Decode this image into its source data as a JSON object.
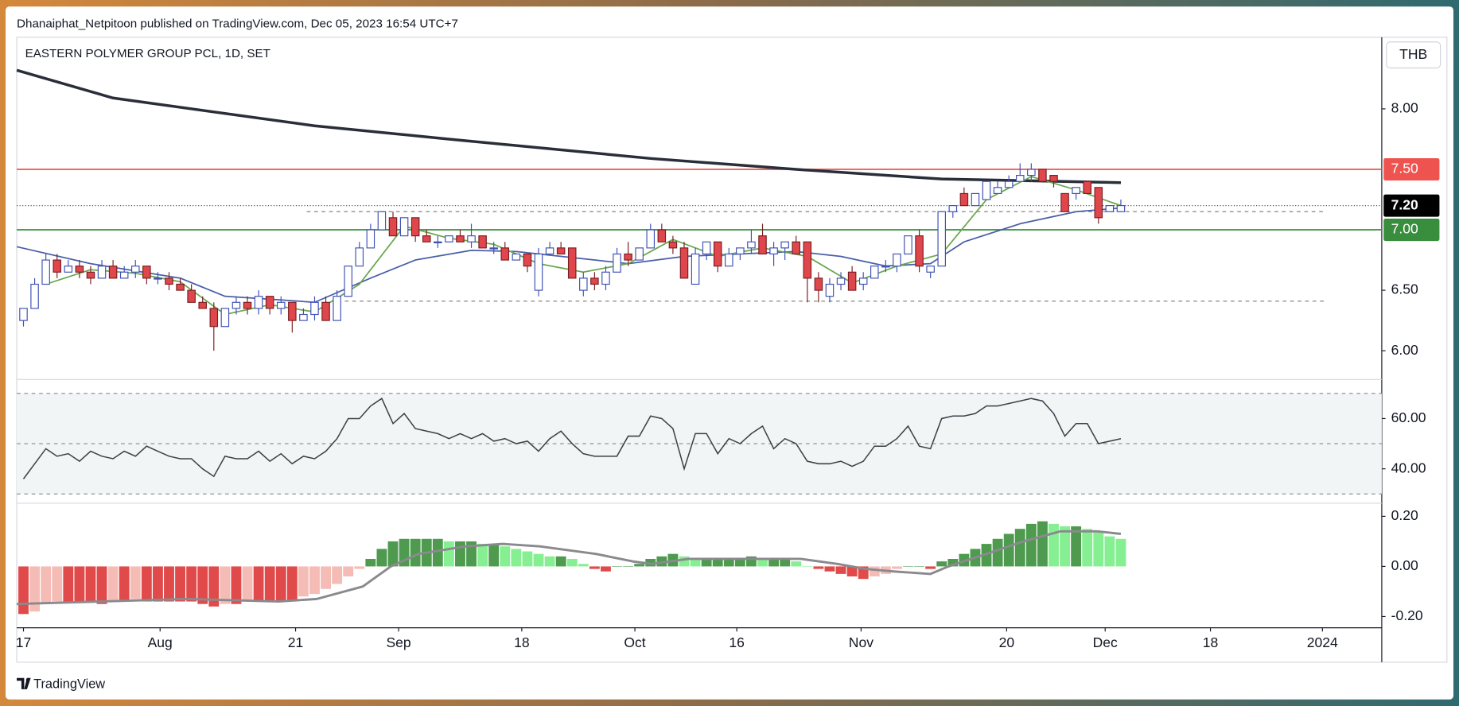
{
  "header": {
    "publisher": "Dhanaiphat_Netpitoon published on TradingView.com, Dec 05, 2023 16:54 UTC+7",
    "symbol": "EASTERN POLYMER GROUP PCL, 1D, SET",
    "currency": "THB"
  },
  "footer": {
    "brand": "TradingView"
  },
  "chart_data": [
    {
      "type": "candlestick",
      "up_color": "#ffffff",
      "up_border": "#3f51b5",
      "down_color": "#e0474c",
      "down_border": "#7a1f22",
      "open": [
        6.25,
        6.35,
        6.55,
        6.75,
        6.65,
        6.7,
        6.65,
        6.6,
        6.7,
        6.6,
        6.65,
        6.7,
        6.6,
        6.6,
        6.55,
        6.5,
        6.4,
        6.35,
        6.2,
        6.35,
        6.4,
        6.35,
        6.45,
        6.35,
        6.4,
        6.25,
        6.3,
        6.4,
        6.25,
        6.45,
        6.7,
        6.85,
        7.0,
        7.1,
        6.95,
        7.1,
        6.95,
        6.9,
        6.9,
        6.95,
        6.9,
        6.95,
        6.85,
        6.85,
        6.75,
        6.8,
        6.5,
        6.8,
        6.85,
        6.85,
        6.5,
        6.6,
        6.55,
        6.65,
        6.8,
        6.75,
        6.85,
        7.0,
        6.9,
        6.85,
        6.55,
        6.8,
        6.9,
        6.7,
        6.8,
        6.85,
        6.95,
        6.8,
        6.85,
        6.9,
        6.9,
        6.6,
        6.45,
        6.55,
        6.65,
        6.55,
        6.6,
        6.7,
        6.7,
        6.8,
        6.95,
        6.65,
        6.7,
        7.15,
        7.3,
        7.2,
        7.25,
        7.3,
        7.35,
        7.4,
        7.45,
        7.5,
        7.45,
        7.3,
        7.3,
        7.4,
        7.35,
        7.15,
        7.15
      ],
      "high": [
        6.35,
        6.6,
        6.8,
        6.8,
        6.75,
        6.75,
        6.7,
        6.75,
        6.75,
        6.7,
        6.75,
        6.7,
        6.65,
        6.65,
        6.6,
        6.55,
        6.45,
        6.4,
        6.35,
        6.45,
        6.45,
        6.5,
        6.45,
        6.45,
        6.4,
        6.35,
        6.45,
        6.45,
        6.5,
        6.7,
        6.9,
        7.05,
        7.15,
        7.15,
        7.1,
        7.1,
        7.0,
        6.95,
        6.95,
        7.0,
        7.05,
        6.95,
        6.9,
        6.9,
        6.8,
        6.8,
        6.85,
        6.9,
        6.9,
        6.85,
        6.65,
        6.65,
        6.7,
        6.85,
        6.9,
        6.85,
        7.05,
        7.05,
        6.95,
        6.9,
        6.85,
        6.9,
        6.9,
        6.85,
        6.85,
        7.0,
        7.05,
        6.9,
        6.9,
        6.95,
        6.9,
        6.65,
        6.6,
        6.65,
        6.7,
        6.65,
        6.7,
        6.75,
        6.8,
        6.95,
        7.0,
        6.7,
        7.15,
        7.2,
        7.35,
        7.3,
        7.4,
        7.4,
        7.45,
        7.55,
        7.55,
        7.5,
        7.45,
        7.3,
        7.35,
        7.4,
        7.35,
        7.2,
        7.25
      ],
      "low": [
        6.2,
        6.35,
        6.55,
        6.6,
        6.65,
        6.6,
        6.55,
        6.6,
        6.6,
        6.6,
        6.6,
        6.55,
        6.55,
        6.5,
        6.5,
        6.4,
        6.35,
        6.0,
        6.2,
        6.3,
        6.3,
        6.3,
        6.3,
        6.3,
        6.15,
        6.25,
        6.25,
        6.25,
        6.25,
        6.45,
        6.7,
        6.85,
        7.0,
        6.95,
        6.95,
        6.9,
        6.9,
        6.85,
        6.9,
        6.9,
        6.85,
        6.85,
        6.8,
        6.75,
        6.75,
        6.65,
        6.45,
        6.8,
        6.8,
        6.6,
        6.45,
        6.5,
        6.5,
        6.65,
        6.7,
        6.75,
        6.85,
        6.9,
        6.8,
        6.6,
        6.55,
        6.75,
        6.65,
        6.7,
        6.75,
        6.8,
        6.8,
        6.7,
        6.75,
        6.8,
        6.4,
        6.4,
        6.4,
        6.5,
        6.5,
        6.5,
        6.6,
        6.65,
        6.65,
        6.8,
        6.65,
        6.6,
        6.7,
        7.1,
        7.2,
        7.2,
        7.25,
        7.3,
        7.35,
        7.4,
        7.4,
        7.4,
        7.35,
        7.15,
        7.25,
        7.3,
        7.05,
        7.15,
        7.15
      ],
      "close": [
        6.35,
        6.55,
        6.75,
        6.65,
        6.7,
        6.65,
        6.6,
        6.7,
        6.6,
        6.65,
        6.7,
        6.6,
        6.6,
        6.55,
        6.5,
        6.4,
        6.35,
        6.2,
        6.35,
        6.4,
        6.35,
        6.45,
        6.35,
        6.4,
        6.25,
        6.3,
        6.4,
        6.25,
        6.45,
        6.7,
        6.85,
        7.0,
        7.15,
        6.95,
        7.1,
        6.95,
        6.9,
        6.9,
        6.95,
        6.9,
        6.95,
        6.85,
        6.85,
        6.75,
        6.8,
        6.7,
        6.8,
        6.85,
        6.8,
        6.6,
        6.6,
        6.55,
        6.65,
        6.8,
        6.75,
        6.85,
        7.0,
        6.9,
        6.85,
        6.6,
        6.8,
        6.9,
        6.7,
        6.8,
        6.85,
        6.9,
        6.8,
        6.85,
        6.9,
        6.8,
        6.6,
        6.5,
        6.55,
        6.6,
        6.5,
        6.6,
        6.7,
        6.7,
        6.8,
        6.95,
        6.7,
        6.7,
        7.15,
        7.2,
        7.2,
        7.3,
        7.4,
        7.35,
        7.4,
        7.45,
        7.5,
        7.4,
        7.4,
        7.15,
        7.35,
        7.3,
        7.1,
        7.2,
        7.2
      ],
      "series": [
        {
          "color": "#2a2e39",
          "width": 3,
          "x": [
            -0.6,
            8,
            26,
            38,
            56,
            69,
            82,
            98
          ],
          "values": [
            8.32,
            8.09,
            7.86,
            7.75,
            7.59,
            7.5,
            7.42,
            7.39
          ]
        },
        {
          "color": "#4a5fa8",
          "width": 1.5,
          "x": [
            -0.6,
            6,
            14,
            18,
            23,
            26,
            31,
            35,
            40,
            44,
            51,
            54,
            59,
            64,
            69,
            73,
            77,
            81,
            84,
            89,
            94,
            98
          ],
          "values": [
            6.86,
            6.72,
            6.6,
            6.45,
            6.42,
            6.4,
            6.6,
            6.75,
            6.83,
            6.82,
            6.75,
            6.72,
            6.78,
            6.8,
            6.82,
            6.78,
            6.7,
            6.72,
            6.9,
            7.05,
            7.15,
            7.18
          ]
        },
        {
          "color": "#6aa84f",
          "width": 1.5,
          "x": [
            2,
            6,
            10,
            14,
            18,
            22,
            26,
            30,
            34,
            38,
            42,
            46,
            50,
            54,
            58,
            62,
            66,
            70,
            74,
            78,
            82,
            86,
            90,
            94,
            98
          ],
          "values": [
            6.55,
            6.67,
            6.64,
            6.57,
            6.3,
            6.38,
            6.32,
            6.55,
            7.03,
            6.93,
            6.88,
            6.72,
            6.65,
            6.72,
            6.92,
            6.78,
            6.85,
            6.78,
            6.56,
            6.7,
            6.8,
            7.25,
            7.44,
            7.33,
            7.2
          ]
        }
      ],
      "levels": [
        {
          "value": 7.5,
          "label": "7.50",
          "color": "#ef5350"
        },
        {
          "value": 7.0,
          "label": "7.00",
          "color": "#388e3c"
        }
      ],
      "last": {
        "value": 7.2,
        "label": "7.20",
        "color": "#000000"
      },
      "dashed": [
        {
          "value": 7.15,
          "xlim": [
            25.3,
            116.3
          ]
        },
        {
          "value": 6.41,
          "xlim": [
            28.7,
            116.3
          ]
        }
      ],
      "xlim": [
        -0.6,
        121.3
      ],
      "ylim": [
        5.762,
        8.592
      ],
      "yticks": [
        {
          "value": 8,
          "label": "8.00"
        },
        {
          "value": 6.5,
          "label": "6.50"
        },
        {
          "value": 6,
          "label": "6.00"
        }
      ]
    },
    {
      "type": "line",
      "color": "#3c3f47",
      "values": [
        36,
        42,
        48,
        45,
        46,
        43,
        47,
        45,
        44,
        47,
        45,
        49,
        47,
        45,
        44,
        44,
        40,
        37,
        45,
        44,
        44,
        47,
        43,
        46,
        42,
        45,
        44,
        47,
        52,
        60,
        60,
        65,
        68,
        58,
        62,
        56,
        55,
        54,
        52,
        54,
        52,
        54,
        51,
        52,
        50,
        51,
        47,
        52,
        55,
        50,
        46,
        45,
        45,
        45,
        53,
        53,
        61,
        60,
        56,
        40,
        54,
        54,
        46,
        52,
        50,
        54,
        57,
        48,
        52,
        50,
        43,
        42,
        42,
        43,
        41,
        43,
        49,
        49,
        52,
        57,
        49,
        48,
        60,
        61,
        61,
        62,
        65,
        65,
        66,
        67,
        68,
        67,
        62,
        53,
        58,
        58,
        50,
        51,
        52
      ],
      "hlines": [
        70,
        50,
        30
      ],
      "band_color": "#f2f5f6",
      "xlim": [
        -0.6,
        121.3
      ],
      "ylim": [
        26.7,
        74.8
      ],
      "yticks": [
        {
          "value": 60,
          "label": "60.00"
        },
        {
          "value": 40,
          "label": "40.00"
        }
      ]
    },
    {
      "type": "bar",
      "values": [
        -0.19,
        -0.18,
        -0.15,
        -0.14,
        -0.14,
        -0.14,
        -0.14,
        -0.15,
        -0.14,
        -0.14,
        -0.13,
        -0.14,
        -0.14,
        -0.14,
        -0.14,
        -0.14,
        -0.15,
        -0.16,
        -0.15,
        -0.15,
        -0.14,
        -0.14,
        -0.14,
        -0.14,
        -0.14,
        -0.12,
        -0.11,
        -0.09,
        -0.07,
        -0.04,
        -0.01,
        0.03,
        0.07,
        0.1,
        0.11,
        0.11,
        0.11,
        0.11,
        0.1,
        0.1,
        0.1,
        0.09,
        0.09,
        0.08,
        0.07,
        0.06,
        0.05,
        0.04,
        0.04,
        0.03,
        0.01,
        -0.01,
        -0.02,
        0.0,
        0.0,
        0.01,
        0.03,
        0.04,
        0.05,
        0.04,
        0.03,
        0.03,
        0.03,
        0.03,
        0.03,
        0.04,
        0.03,
        0.03,
        0.03,
        0.02,
        0.0,
        -0.01,
        -0.02,
        -0.03,
        -0.04,
        -0.05,
        -0.04,
        -0.03,
        -0.01,
        0.0,
        0.0,
        -0.01,
        0.02,
        0.03,
        0.05,
        0.07,
        0.09,
        0.11,
        0.13,
        0.15,
        0.17,
        0.18,
        0.17,
        0.16,
        0.16,
        0.15,
        0.14,
        0.12,
        0.11
      ],
      "colors": {
        "positive_rising": "#4e9a4f",
        "positive_falling": "#86ef92",
        "negative_falling": "#e04a4a",
        "negative_rising": "#f5bcb6"
      },
      "series": [
        {
          "color": "#8a8a8e",
          "width": 2.5,
          "x": [
            -0.6,
            14.5,
            22.8,
            26.2,
            30.3,
            32.8,
            35.3,
            39.5,
            42.8,
            46.1,
            51.1,
            54.4,
            56.1,
            59.4,
            64.4,
            69.4,
            72.7,
            75.2,
            77.7,
            81,
            82.6,
            86,
            89.3,
            92.6,
            95.9,
            98
          ],
          "values": [
            -0.15,
            -0.13,
            -0.14,
            -0.13,
            -0.08,
            0.0,
            0.05,
            0.08,
            0.09,
            0.08,
            0.05,
            0.02,
            0.01,
            0.03,
            0.03,
            0.03,
            0.01,
            -0.01,
            -0.02,
            -0.03,
            0.0,
            0.05,
            0.1,
            0.14,
            0.14,
            0.13
          ]
        }
      ],
      "xlim": [
        -0.6,
        121.3
      ],
      "ylim": [
        -0.245,
        0.245
      ],
      "yticks": [
        {
          "value": 0.2,
          "label": "0.20"
        },
        {
          "value": 0,
          "label": "0.00"
        },
        {
          "value": -0.2,
          "label": "-0.20"
        }
      ],
      "xticks": [
        {
          "value": 0,
          "label": "17"
        },
        {
          "value": 12.2,
          "label": "Aug"
        },
        {
          "value": 24.3,
          "label": "21"
        },
        {
          "value": 33.5,
          "label": "Sep"
        },
        {
          "value": 44.5,
          "label": "18"
        },
        {
          "value": 54.6,
          "label": "Oct"
        },
        {
          "value": 63.7,
          "label": "16"
        },
        {
          "value": 74.8,
          "label": "Nov"
        },
        {
          "value": 87.8,
          "label": "20"
        },
        {
          "value": 96.6,
          "label": "Dec"
        },
        {
          "value": 106,
          "label": "18"
        },
        {
          "value": 116,
          "label": "2024"
        }
      ]
    }
  ]
}
